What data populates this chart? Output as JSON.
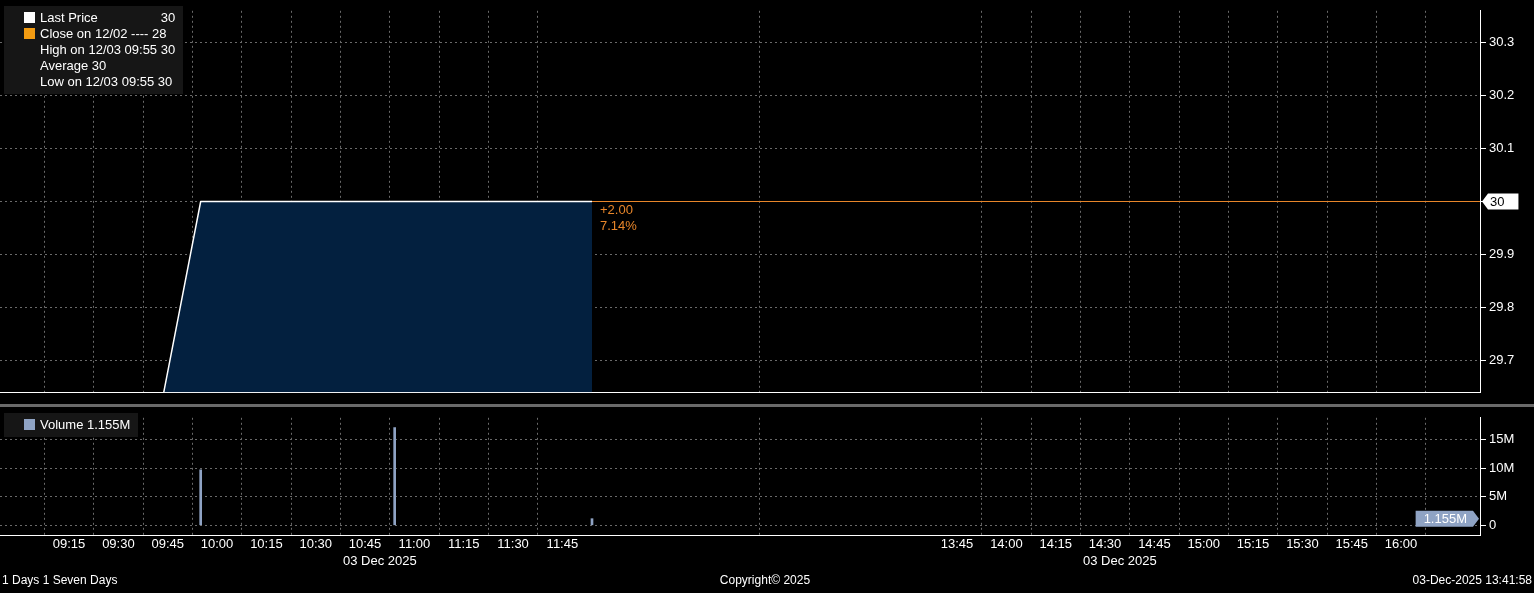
{
  "chart_data": [
    {
      "type": "area",
      "x": [
        9.73,
        9.917,
        11.9
      ],
      "series": [
        {
          "name": "Last Price",
          "color": "#ffffff",
          "values": [
            29.64,
            30,
            30
          ]
        }
      ],
      "xlim": [
        8.9,
        16.4
      ],
      "xticks": [
        9.25,
        9.5,
        9.75,
        10,
        10.25,
        10.5,
        10.75,
        11,
        11.25,
        11.5,
        11.75,
        13.75,
        14,
        14.25,
        14.5,
        14.75,
        15,
        15.25,
        15.5,
        15.75,
        16
      ],
      "ylim": [
        29.64,
        30.36
      ],
      "yticks": [
        29.7,
        29.8,
        29.9,
        {
          "value": 30,
          "label": null
        },
        30.1,
        30.2,
        30.3
      ],
      "ref_lines": [
        {
          "axis": "y",
          "value": 30,
          "color": "#e8862a"
        }
      ],
      "annotations": [
        {
          "text": "+2.00",
          "x": 11.9,
          "y": 30
        },
        {
          "text": "7.14%",
          "x": 11.9,
          "y": 30
        },
        "30",
        "30",
        "Close on 12/02 ---- 28",
        "High on 12/03 09:55 30",
        "Average 30",
        "Low on 12/03 09:55 30"
      ],
      "marker": "none",
      "grid": true,
      "legend": "top left",
      "tick_labels": "y"
    },
    {
      "type": "bar",
      "x": [
        9.917,
        10.9,
        11.9
      ],
      "series": [
        {
          "name": "Volume",
          "color": "#8fa3c4",
          "values": [
            9.7,
            17.1,
            1.155
          ]
        }
      ],
      "xlim": [
        8.9,
        16.4
      ],
      "xticks": [
        {
          "value": 9.25,
          "label": "09:15"
        },
        {
          "value": 9.5,
          "label": "09:30"
        },
        {
          "value": 9.75,
          "label": "09:45"
        },
        {
          "value": 10,
          "label": "10:00"
        },
        {
          "value": 10.25,
          "label": "10:15"
        },
        {
          "value": 10.5,
          "label": "10:30"
        },
        {
          "value": 10.75,
          "label": "10:45"
        },
        {
          "value": 11,
          "label": "11:00"
        },
        {
          "value": 11.25,
          "label": "11:15"
        },
        {
          "value": 11.5,
          "label": "11:30"
        },
        {
          "value": 11.75,
          "label": "11:45"
        },
        {
          "value": 13.75,
          "label": "13:45"
        },
        {
          "value": 14,
          "label": "14:00"
        },
        {
          "value": 14.25,
          "label": "14:15"
        },
        {
          "value": 14.5,
          "label": "14:30"
        },
        {
          "value": 14.75,
          "label": "14:45"
        },
        {
          "value": 15,
          "label": "15:00"
        },
        {
          "value": 15.25,
          "label": "15:15"
        },
        {
          "value": 15.5,
          "label": "15:30"
        },
        {
          "value": 15.75,
          "label": "15:45"
        },
        {
          "value": 16,
          "label": "16:00"
        }
      ],
      "xlabel": "03 Dec 2025",
      "ylim": [
        -1.7,
        18.8
      ],
      "yticks": [
        0,
        {
          "value": 5,
          "label": "5M"
        },
        {
          "value": 10,
          "label": "10M"
        },
        {
          "value": 15,
          "label": "15M"
        }
      ],
      "annotations": [
        "1.155M",
        "1.155M",
        "1 Days 1 Seven Days",
        "Copyright© 2025",
        "03-Dec-2025 13:41:58"
      ],
      "grid": true,
      "legend": "top left"
    }
  ]
}
